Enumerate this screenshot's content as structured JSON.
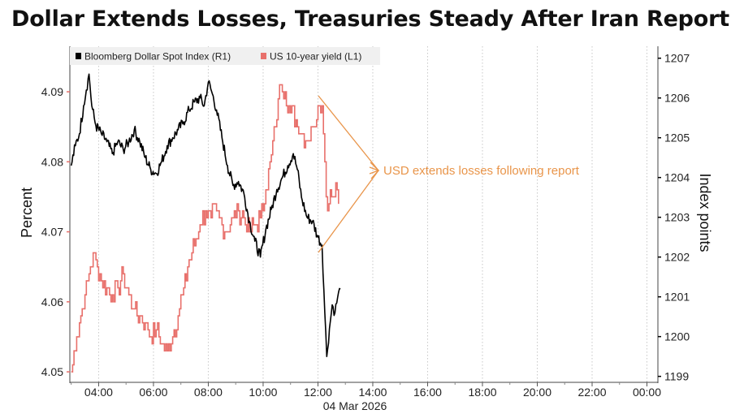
{
  "title": "Dollar Extends Losses, Treasuries Steady After Iran Report",
  "chart_data": {
    "type": "line",
    "date_label": "04 Mar 2026",
    "x_ticks": [
      "04:00",
      "06:00",
      "08:00",
      "10:00",
      "12:00",
      "14:00",
      "16:00",
      "18:00",
      "20:00",
      "22:00",
      "00:00"
    ],
    "x_tick_hours": [
      4,
      6,
      8,
      10,
      12,
      14,
      16,
      18,
      20,
      22,
      24
    ],
    "xlim": [
      2.95,
      24.4
    ],
    "left_axis": {
      "label": "Percent",
      "ticks": [
        "4.05",
        "4.06",
        "4.07",
        "4.08",
        "4.09"
      ],
      "range": [
        4.0485,
        4.0965
      ]
    },
    "right_axis": {
      "label": "Index points",
      "ticks": [
        "1199",
        "1200",
        "1201",
        "1202",
        "1203",
        "1204",
        "1205",
        "1206",
        "1207"
      ],
      "range": [
        1198.85,
        1207.3
      ]
    },
    "grid": "vertical dotted",
    "legend_position": "top-left",
    "series": [
      {
        "name": "Bloomberg Dollar Spot Index (R1)",
        "axis": "right",
        "color": "#000000",
        "points": [
          [
            3.0,
            1204.3
          ],
          [
            3.15,
            1204.8
          ],
          [
            3.3,
            1205.1
          ],
          [
            3.45,
            1205.8
          ],
          [
            3.55,
            1206.2
          ],
          [
            3.65,
            1206.6
          ],
          [
            3.75,
            1205.8
          ],
          [
            3.9,
            1205.3
          ],
          [
            4.1,
            1205.1
          ],
          [
            4.3,
            1204.9
          ],
          [
            4.5,
            1204.6
          ],
          [
            4.7,
            1204.9
          ],
          [
            4.9,
            1204.7
          ],
          [
            5.1,
            1204.9
          ],
          [
            5.3,
            1205.2
          ],
          [
            5.5,
            1204.9
          ],
          [
            5.7,
            1204.5
          ],
          [
            5.9,
            1204.2
          ],
          [
            6.1,
            1204.1
          ],
          [
            6.3,
            1204.4
          ],
          [
            6.5,
            1204.8
          ],
          [
            6.7,
            1205.0
          ],
          [
            6.9,
            1205.2
          ],
          [
            7.1,
            1205.4
          ],
          [
            7.3,
            1205.7
          ],
          [
            7.5,
            1205.9
          ],
          [
            7.7,
            1206.0
          ],
          [
            7.85,
            1205.8
          ],
          [
            8.0,
            1206.4
          ],
          [
            8.15,
            1206.1
          ],
          [
            8.3,
            1205.7
          ],
          [
            8.5,
            1205.0
          ],
          [
            8.7,
            1204.3
          ],
          [
            8.9,
            1203.8
          ],
          [
            9.1,
            1203.9
          ],
          [
            9.3,
            1203.6
          ],
          [
            9.5,
            1202.9
          ],
          [
            9.7,
            1202.4
          ],
          [
            9.9,
            1202.0
          ],
          [
            10.1,
            1202.7
          ],
          [
            10.3,
            1203.2
          ],
          [
            10.5,
            1203.7
          ],
          [
            10.7,
            1204.0
          ],
          [
            10.9,
            1204.3
          ],
          [
            11.1,
            1204.6
          ],
          [
            11.25,
            1204.2
          ],
          [
            11.4,
            1203.5
          ],
          [
            11.6,
            1203.0
          ],
          [
            11.8,
            1202.9
          ],
          [
            12.0,
            1202.5
          ],
          [
            12.15,
            1202.3
          ],
          [
            12.25,
            1200.6
          ],
          [
            12.32,
            1199.5
          ],
          [
            12.42,
            1200.2
          ],
          [
            12.52,
            1200.8
          ],
          [
            12.62,
            1200.6
          ],
          [
            12.72,
            1201.0
          ],
          [
            12.82,
            1201.2
          ]
        ]
      },
      {
        "name": "US 10-year yield (L1)",
        "axis": "left",
        "color": "#e8706b",
        "points": [
          [
            3.0,
            4.05
          ],
          [
            3.2,
            4.055
          ],
          [
            3.35,
            4.058
          ],
          [
            3.5,
            4.061
          ],
          [
            3.65,
            4.064
          ],
          [
            3.8,
            4.067
          ],
          [
            3.95,
            4.065
          ],
          [
            4.1,
            4.063
          ],
          [
            4.3,
            4.062
          ],
          [
            4.5,
            4.061
          ],
          [
            4.7,
            4.062
          ],
          [
            4.9,
            4.064
          ],
          [
            5.1,
            4.061
          ],
          [
            5.3,
            4.059
          ],
          [
            5.5,
            4.058
          ],
          [
            5.7,
            4.057
          ],
          [
            5.9,
            4.055
          ],
          [
            6.1,
            4.056
          ],
          [
            6.3,
            4.054
          ],
          [
            6.5,
            4.053
          ],
          [
            6.7,
            4.055
          ],
          [
            6.9,
            4.058
          ],
          [
            7.1,
            4.062
          ],
          [
            7.3,
            4.066
          ],
          [
            7.5,
            4.068
          ],
          [
            7.7,
            4.071
          ],
          [
            7.9,
            4.073
          ],
          [
            8.1,
            4.072
          ],
          [
            8.3,
            4.073
          ],
          [
            8.5,
            4.071
          ],
          [
            8.7,
            4.07
          ],
          [
            8.9,
            4.072
          ],
          [
            9.1,
            4.073
          ],
          [
            9.3,
            4.072
          ],
          [
            9.5,
            4.07
          ],
          [
            9.7,
            4.071
          ],
          [
            9.9,
            4.072
          ],
          [
            10.1,
            4.076
          ],
          [
            10.3,
            4.081
          ],
          [
            10.45,
            4.085
          ],
          [
            10.55,
            4.089
          ],
          [
            10.65,
            4.091
          ],
          [
            10.8,
            4.09
          ],
          [
            11.0,
            4.087
          ],
          [
            11.2,
            4.086
          ],
          [
            11.4,
            4.084
          ],
          [
            11.6,
            4.083
          ],
          [
            11.8,
            4.085
          ],
          [
            12.0,
            4.088
          ],
          [
            12.15,
            4.088
          ],
          [
            12.25,
            4.08
          ],
          [
            12.35,
            4.073
          ],
          [
            12.45,
            4.076
          ],
          [
            12.55,
            4.075
          ],
          [
            12.65,
            4.077
          ],
          [
            12.75,
            4.074
          ]
        ]
      }
    ],
    "annotation": {
      "text": "USD extends losses following report",
      "color": "#e9954a"
    }
  }
}
